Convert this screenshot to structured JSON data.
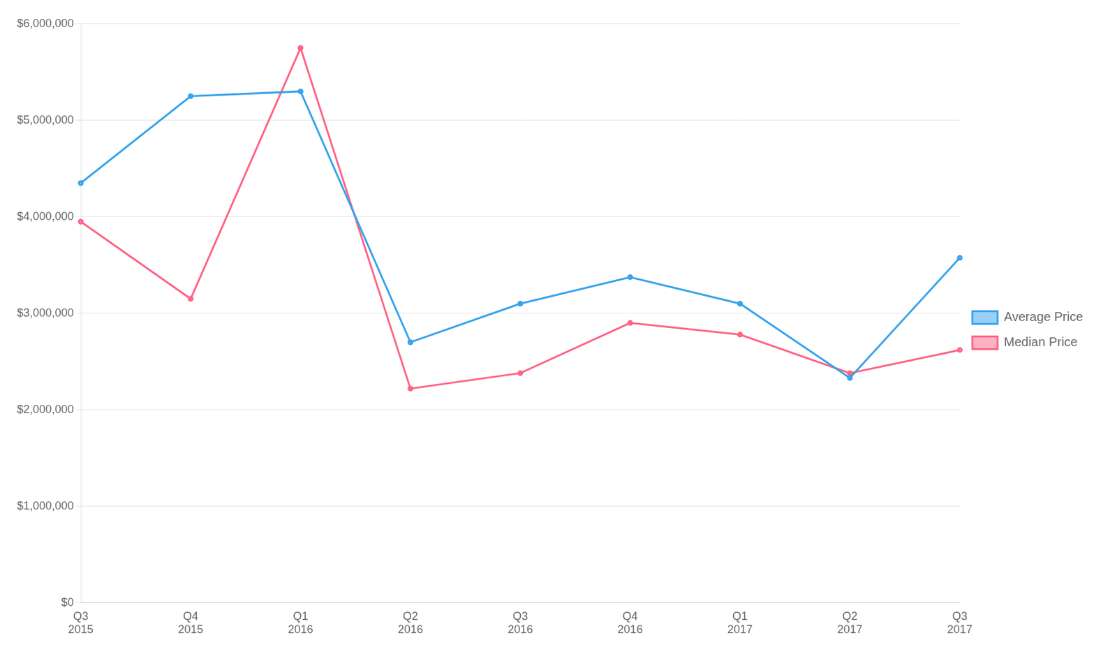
{
  "chart_data": {
    "type": "line",
    "categories": [
      "Q3\n2015",
      "Q4\n2015",
      "Q1\n2016",
      "Q2\n2016",
      "Q3\n2016",
      "Q4\n2016",
      "Q1\n2017",
      "Q2\n2017",
      "Q3\n2017"
    ],
    "series": [
      {
        "name": "Average Price",
        "values": [
          4350000,
          5250000,
          5300000,
          2700000,
          3100000,
          3375000,
          3100000,
          2330000,
          3575000
        ]
      },
      {
        "name": "Median Price",
        "values": [
          3950000,
          3150000,
          5750000,
          2220000,
          2380000,
          2900000,
          2780000,
          2380000,
          2620000
        ]
      }
    ],
    "ylim": [
      0,
      6000000
    ],
    "yticks": [
      {
        "value": 0,
        "label": "$0"
      },
      {
        "value": 1000000,
        "label": "$1,000,000"
      },
      {
        "value": 2000000,
        "label": "$2,000,000"
      },
      {
        "value": 3000000,
        "label": "$3,000,000"
      },
      {
        "value": 4000000,
        "label": "$4,000,000"
      },
      {
        "value": 5000000,
        "label": "$5,000,000"
      },
      {
        "value": 6000000,
        "label": "$6,000,000"
      }
    ],
    "grid": true,
    "legend": "right"
  }
}
